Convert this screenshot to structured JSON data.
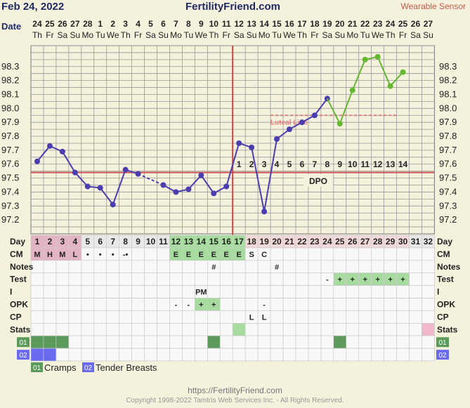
{
  "header": {
    "date": "Feb 24, 2022",
    "brand": "FertilityFriend.com",
    "sensor": "Wearable Sensor",
    "date_label": "Date"
  },
  "footer": {
    "url": "https://FertilityFriend.com",
    "copyright": "Copyright 1998-2022 Tamtris Web Services Inc. - All Rights Reserved."
  },
  "colors": {
    "background": "#f4f1dc",
    "temp_line": "#4a3db0",
    "sensor_line": "#66b833",
    "coverline": "#cc5555",
    "ovulation_line": "#cc4444",
    "fertile_cell": "#a8dba0",
    "menses_cell": "#e2b4c4",
    "luteal_cell": "#f2d8d8"
  },
  "chart_data": {
    "type": "line",
    "dates": [
      "24",
      "25",
      "26",
      "27",
      "28",
      "1",
      "2",
      "3",
      "4",
      "5",
      "6",
      "7",
      "8",
      "9",
      "10",
      "11",
      "12",
      "13",
      "14",
      "15",
      "16",
      "17",
      "18",
      "19",
      "20",
      "21",
      "22",
      "23",
      "24",
      "25",
      "26",
      "27"
    ],
    "weekdays": [
      "Th",
      "Fr",
      "Sa",
      "Su",
      "Mo",
      "Tu",
      "We",
      "Th",
      "Fr",
      "Sa",
      "Su",
      "Mo",
      "Tu",
      "We",
      "Th",
      "Fr",
      "Sa",
      "Su",
      "Mo",
      "Tu",
      "We",
      "Th",
      "Fr",
      "Sa",
      "Su",
      "Mo",
      "Tu",
      "We",
      "Th",
      "Fr",
      "Sa",
      "Su"
    ],
    "cycle_days": [
      "1",
      "2",
      "3",
      "4",
      "5",
      "6",
      "7",
      "8",
      "9",
      "10",
      "11",
      "12",
      "13",
      "14",
      "15",
      "16",
      "17",
      "18",
      "19",
      "20",
      "21",
      "22",
      "23",
      "24",
      "25",
      "26",
      "27",
      "28",
      "29",
      "30",
      "31",
      "32"
    ],
    "ylim": [
      97.1,
      98.45
    ],
    "y_ticks": [
      "97.2",
      "97.3",
      "97.4",
      "97.5",
      "97.6",
      "97.7",
      "97.8",
      "97.9",
      "98.0",
      "98.1",
      "98.2",
      "98.3"
    ],
    "series": [
      {
        "values": [
          97.62,
          97.73,
          97.69,
          97.54,
          97.44,
          97.43,
          97.31,
          97.56,
          97.53,
          null,
          97.45,
          97.4,
          97.42,
          97.52,
          97.39,
          97.44,
          97.75,
          97.72,
          97.26,
          97.78,
          97.85,
          97.9,
          97.95,
          98.07,
          null,
          null,
          null,
          null,
          null,
          null,
          null,
          null
        ]
      },
      {
        "values": [
          null,
          null,
          null,
          null,
          null,
          null,
          null,
          null,
          null,
          null,
          null,
          null,
          null,
          null,
          null,
          null,
          null,
          null,
          null,
          null,
          null,
          null,
          null,
          98.07,
          97.89,
          98.13,
          98.35,
          98.37,
          98.16,
          98.26,
          null,
          null
        ]
      }
    ],
    "dashed_segment_days": [
      9,
      11
    ],
    "coverline": 97.54,
    "ovulation_day": 16,
    "luteal_line": {
      "label": "Luteal Line",
      "value": 97.95,
      "from_day": 20,
      "to_day": 29
    },
    "dpo_label": "DPO",
    "dpo": [
      {
        "day": 17,
        "label": "1"
      },
      {
        "day": 18,
        "label": "2"
      },
      {
        "day": 19,
        "label": "3"
      },
      {
        "day": 20,
        "label": "4"
      },
      {
        "day": 21,
        "label": "5"
      },
      {
        "day": 22,
        "label": "6"
      },
      {
        "day": 23,
        "label": "7"
      },
      {
        "day": 24,
        "label": "8"
      },
      {
        "day": 25,
        "label": "9"
      },
      {
        "day": 26,
        "label": "10"
      },
      {
        "day": 27,
        "label": "11"
      },
      {
        "day": 28,
        "label": "12"
      },
      {
        "day": 29,
        "label": "13"
      },
      {
        "day": 30,
        "label": "14"
      }
    ],
    "rows": [
      {
        "label": "Day",
        "cells": {}
      },
      {
        "label": "CM",
        "cells": {
          "1": "M",
          "2": "H",
          "3": "M",
          "4": "L",
          "5": "•",
          "6": "•",
          "7": "•",
          "8": "-•",
          "12": "E",
          "13": "E",
          "14": "E",
          "15": "E",
          "16": "E",
          "17": "E",
          "18": "S",
          "19": "C"
        }
      },
      {
        "label": "Notes",
        "cells": {
          "15": "#",
          "20": "#"
        }
      },
      {
        "label": "Test",
        "cells": {
          "24": "-",
          "25": "+",
          "26": "+",
          "27": "+",
          "28": "+",
          "29": "+",
          "30": "+"
        }
      },
      {
        "label": "I",
        "cells": {
          "14": "PM"
        }
      },
      {
        "label": "OPK",
        "cells": {
          "12": "-",
          "13": "-",
          "14": "+",
          "15": "+",
          "19": "-"
        }
      },
      {
        "label": "CP",
        "cells": {
          "18": "L",
          "19": "L"
        }
      },
      {
        "label": "Stats",
        "cells": {}
      },
      {
        "label": "01",
        "cells": {}
      },
      {
        "label": "02",
        "cells": {}
      }
    ],
    "legend": [
      {
        "code": "01",
        "label": "Cramps",
        "color": "#5b9a5b"
      },
      {
        "code": "02",
        "label": "Tender Breasts",
        "color": "#6a6af0"
      }
    ]
  }
}
